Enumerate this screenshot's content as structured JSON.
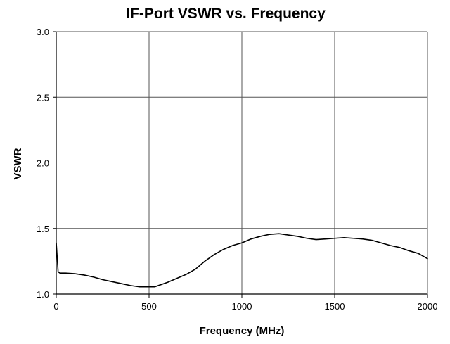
{
  "chart_data": {
    "type": "line",
    "title": "IF-Port VSWR vs. Frequency",
    "xlabel": "Frequency (MHz)",
    "ylabel": "VSWR",
    "xlim": [
      0,
      2000
    ],
    "ylim": [
      1.0,
      3.0
    ],
    "x_ticks": [
      0,
      500,
      1000,
      1500,
      2000
    ],
    "y_ticks": [
      1.0,
      1.5,
      2.0,
      2.5,
      3.0
    ],
    "x_tick_labels": [
      "0",
      "500",
      "1000",
      "1500",
      "2000"
    ],
    "y_tick_labels": [
      "1.0",
      "1.5",
      "2.0",
      "2.5",
      "3.0"
    ],
    "grid": true,
    "legend": "none",
    "colors": {
      "line": "#000000",
      "grid": "#555555",
      "axis": "#000000"
    },
    "series": [
      {
        "x": [
          0,
          5,
          10,
          20,
          50,
          100,
          150,
          200,
          250,
          300,
          350,
          400,
          450,
          500,
          530,
          560,
          600,
          650,
          700,
          750,
          800,
          850,
          900,
          950,
          1000,
          1050,
          1100,
          1150,
          1200,
          1250,
          1300,
          1350,
          1400,
          1450,
          1500,
          1550,
          1600,
          1650,
          1700,
          1750,
          1800,
          1850,
          1900,
          1950,
          2000
        ],
        "y": [
          1.39,
          1.28,
          1.17,
          1.16,
          1.16,
          1.155,
          1.145,
          1.13,
          1.11,
          1.095,
          1.08,
          1.065,
          1.055,
          1.055,
          1.055,
          1.07,
          1.09,
          1.12,
          1.15,
          1.19,
          1.25,
          1.3,
          1.34,
          1.37,
          1.39,
          1.42,
          1.44,
          1.455,
          1.46,
          1.45,
          1.44,
          1.425,
          1.415,
          1.42,
          1.425,
          1.43,
          1.425,
          1.42,
          1.41,
          1.39,
          1.37,
          1.355,
          1.33,
          1.31,
          1.27
        ]
      }
    ]
  }
}
